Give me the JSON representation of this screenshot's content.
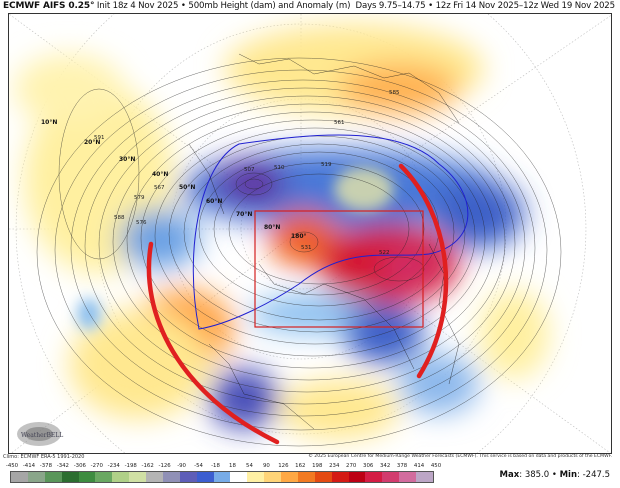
{
  "header": {
    "model": "ECMWF AIFS 0.25°",
    "init": "Init 18z 4 Nov 2025",
    "field": "500mb Height (dam) and Anomaly (m)",
    "days": "Days 9.75–14.75",
    "valid": "12z Fri 14 Nov 2025–12z Wed 19 Nov 2025",
    "separator": "•"
  },
  "map": {
    "latitude_labels": [
      "10°N",
      "20°N",
      "30°N",
      "40°N",
      "50°N",
      "60°N",
      "70°N",
      "80°N"
    ],
    "longitude_labels": [
      "180°"
    ],
    "contour_labels": [
      "591",
      "588",
      "579",
      "576",
      "567",
      "507",
      "510",
      "519",
      "561",
      "531",
      "522",
      "585"
    ],
    "annotations": {
      "box_color": "#d42020",
      "arc_color": "#e02020"
    },
    "logo_text": "WeatherBELL"
  },
  "footer": {
    "climo": "Climo: ECMWF ERA-5 1991-2020",
    "copyright": "© 2025 European Centre for Medium-Range Weather Forecasts (ECMWF). This service is based on data and products of the ECMWF.",
    "max_label": "Max",
    "max_value": "385.0",
    "min_label": "Min",
    "min_value": "-247.5",
    "separator": "•"
  },
  "colorbar": {
    "ticks": [
      "-450",
      "-414",
      "-378",
      "-342",
      "-306",
      "-270",
      "-234",
      "-198",
      "-162",
      "-126",
      "-90",
      "-54",
      "-18",
      "18",
      "54",
      "90",
      "126",
      "162",
      "198",
      "234",
      "270",
      "306",
      "342",
      "378",
      "414",
      "450"
    ],
    "colors": [
      "#a6a6a6",
      "#8aa68a",
      "#5a965a",
      "#2c6e30",
      "#3e8c40",
      "#6aa862",
      "#b0d088",
      "#d0e0a4",
      "#b4b4b4",
      "#9090b6",
      "#5e5eb8",
      "#3c5ed0",
      "#78ace8",
      "#ffffff",
      "#fff0a4",
      "#ffd478",
      "#ffa844",
      "#f27a22",
      "#e44a12",
      "#d41a14",
      "#bc0014",
      "#d41c44",
      "#d23c6e",
      "#d26c9e",
      "#bca6c6"
    ]
  }
}
